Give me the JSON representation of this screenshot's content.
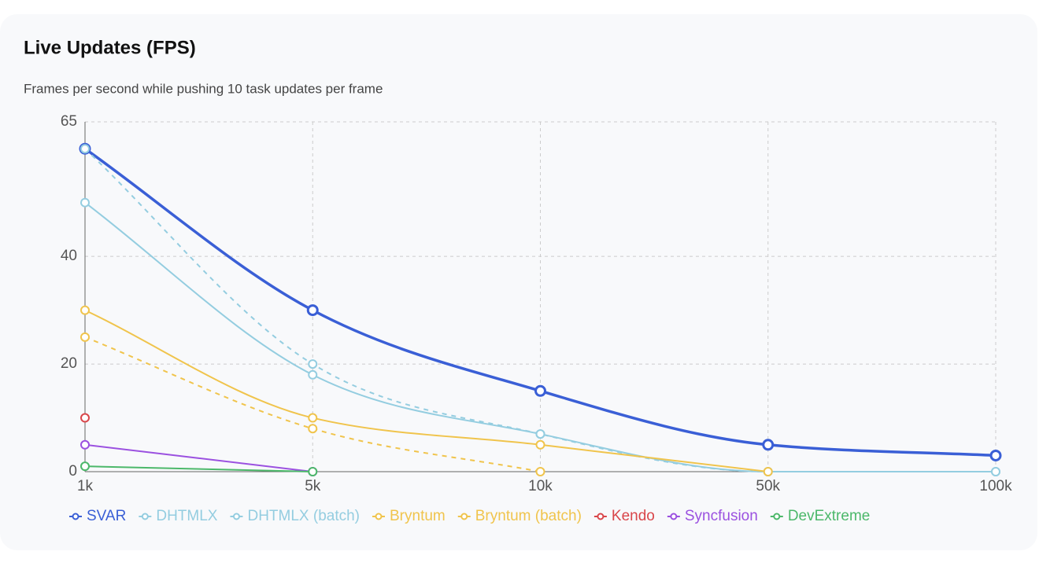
{
  "chart_data": {
    "type": "line",
    "title": "Live Updates (FPS)",
    "subtitle": "Frames per second while pushing 10 task updates per frame",
    "categories": [
      "1k",
      "5k",
      "10k",
      "50k",
      "100k"
    ],
    "ylim": [
      0,
      65
    ],
    "yticks": [
      0,
      20,
      40,
      65
    ],
    "grid": true,
    "series": [
      {
        "name": "SVAR",
        "color": "#3a5fd6",
        "line_width": 3.5,
        "dashed": false,
        "values": [
          60,
          30,
          15,
          5,
          3
        ]
      },
      {
        "name": "DHTMLX",
        "color": "#94cde0",
        "line_width": 2,
        "dashed": false,
        "values": [
          50,
          18,
          7,
          0,
          0
        ]
      },
      {
        "name": "DHTMLX (batch)",
        "color": "#94cde0",
        "line_width": 2,
        "dashed": true,
        "values": [
          60,
          20,
          7,
          0,
          0
        ]
      },
      {
        "name": "Bryntum",
        "color": "#f0c44c",
        "line_width": 2,
        "dashed": false,
        "values": [
          30,
          10,
          5,
          0,
          null
        ]
      },
      {
        "name": "Bryntum (batch)",
        "color": "#f0c44c",
        "line_width": 2,
        "dashed": true,
        "values": [
          25,
          8,
          0,
          null,
          null
        ]
      },
      {
        "name": "Kendo",
        "color": "#d9464a",
        "line_width": 2,
        "dashed": false,
        "values": [
          10,
          null,
          null,
          null,
          null
        ]
      },
      {
        "name": "Syncfusion",
        "color": "#9b51e0",
        "line_width": 2,
        "dashed": false,
        "values": [
          5,
          0,
          null,
          null,
          null
        ]
      },
      {
        "name": "DevExtreme",
        "color": "#4cb86a",
        "line_width": 2,
        "dashed": false,
        "values": [
          1,
          0,
          null,
          null,
          null
        ]
      }
    ]
  }
}
